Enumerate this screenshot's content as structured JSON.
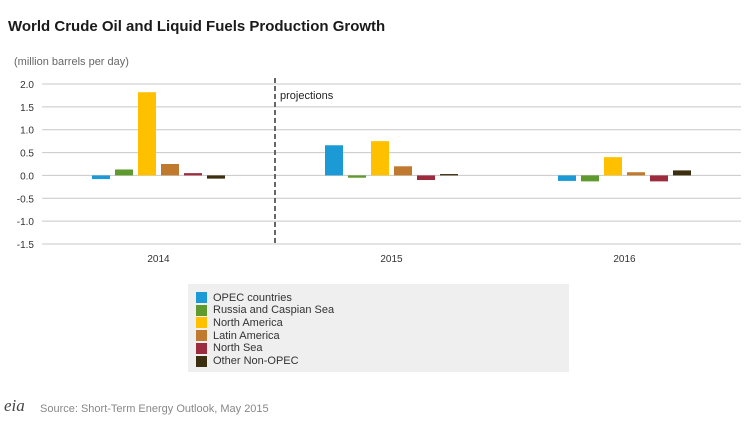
{
  "header": {
    "title": "World Crude Oil and Liquid Fuels Production Growth",
    "unit_label": "(million barrels per day)"
  },
  "chart_data": {
    "type": "bar",
    "title": "World Crude Oil and Liquid Fuels Production Growth",
    "ylabel": "(million barrels per day)",
    "xlabel": "",
    "ylim": [
      -1.5,
      2.0
    ],
    "yticks": [
      "2.0",
      "1.5",
      "1.0",
      "0.5",
      "0.0",
      "-0.5",
      "-1.0",
      "-1.5"
    ],
    "ytick_values": [
      2.0,
      1.5,
      1.0,
      0.5,
      0.0,
      -0.5,
      -1.0,
      -1.5
    ],
    "categories": [
      "2014",
      "2015",
      "2016"
    ],
    "series": [
      {
        "name": "OPEC countries",
        "color": "#1b9ad6",
        "values": [
          -0.08,
          0.66,
          -0.12
        ]
      },
      {
        "name": "Russia and Caspian Sea",
        "color": "#5e9a2e",
        "values": [
          0.13,
          -0.05,
          -0.13
        ]
      },
      {
        "name": "North America",
        "color": "#ffc000",
        "values": [
          1.82,
          0.75,
          0.4
        ]
      },
      {
        "name": "Latin America",
        "color": "#c07a30",
        "values": [
          0.25,
          0.2,
          0.07
        ]
      },
      {
        "name": "North Sea",
        "color": "#9c2b3e",
        "values": [
          0.05,
          -0.1,
          -0.13
        ]
      },
      {
        "name": "Other Non-OPEC",
        "color": "#3b2f10",
        "values": [
          -0.07,
          0.03,
          0.11
        ]
      }
    ],
    "annotation": "projections",
    "grid": true,
    "legend_position": "bottom"
  },
  "footer": {
    "logo_text": "eia",
    "source": "Source: Short-Term Energy Outlook, May 2015"
  }
}
